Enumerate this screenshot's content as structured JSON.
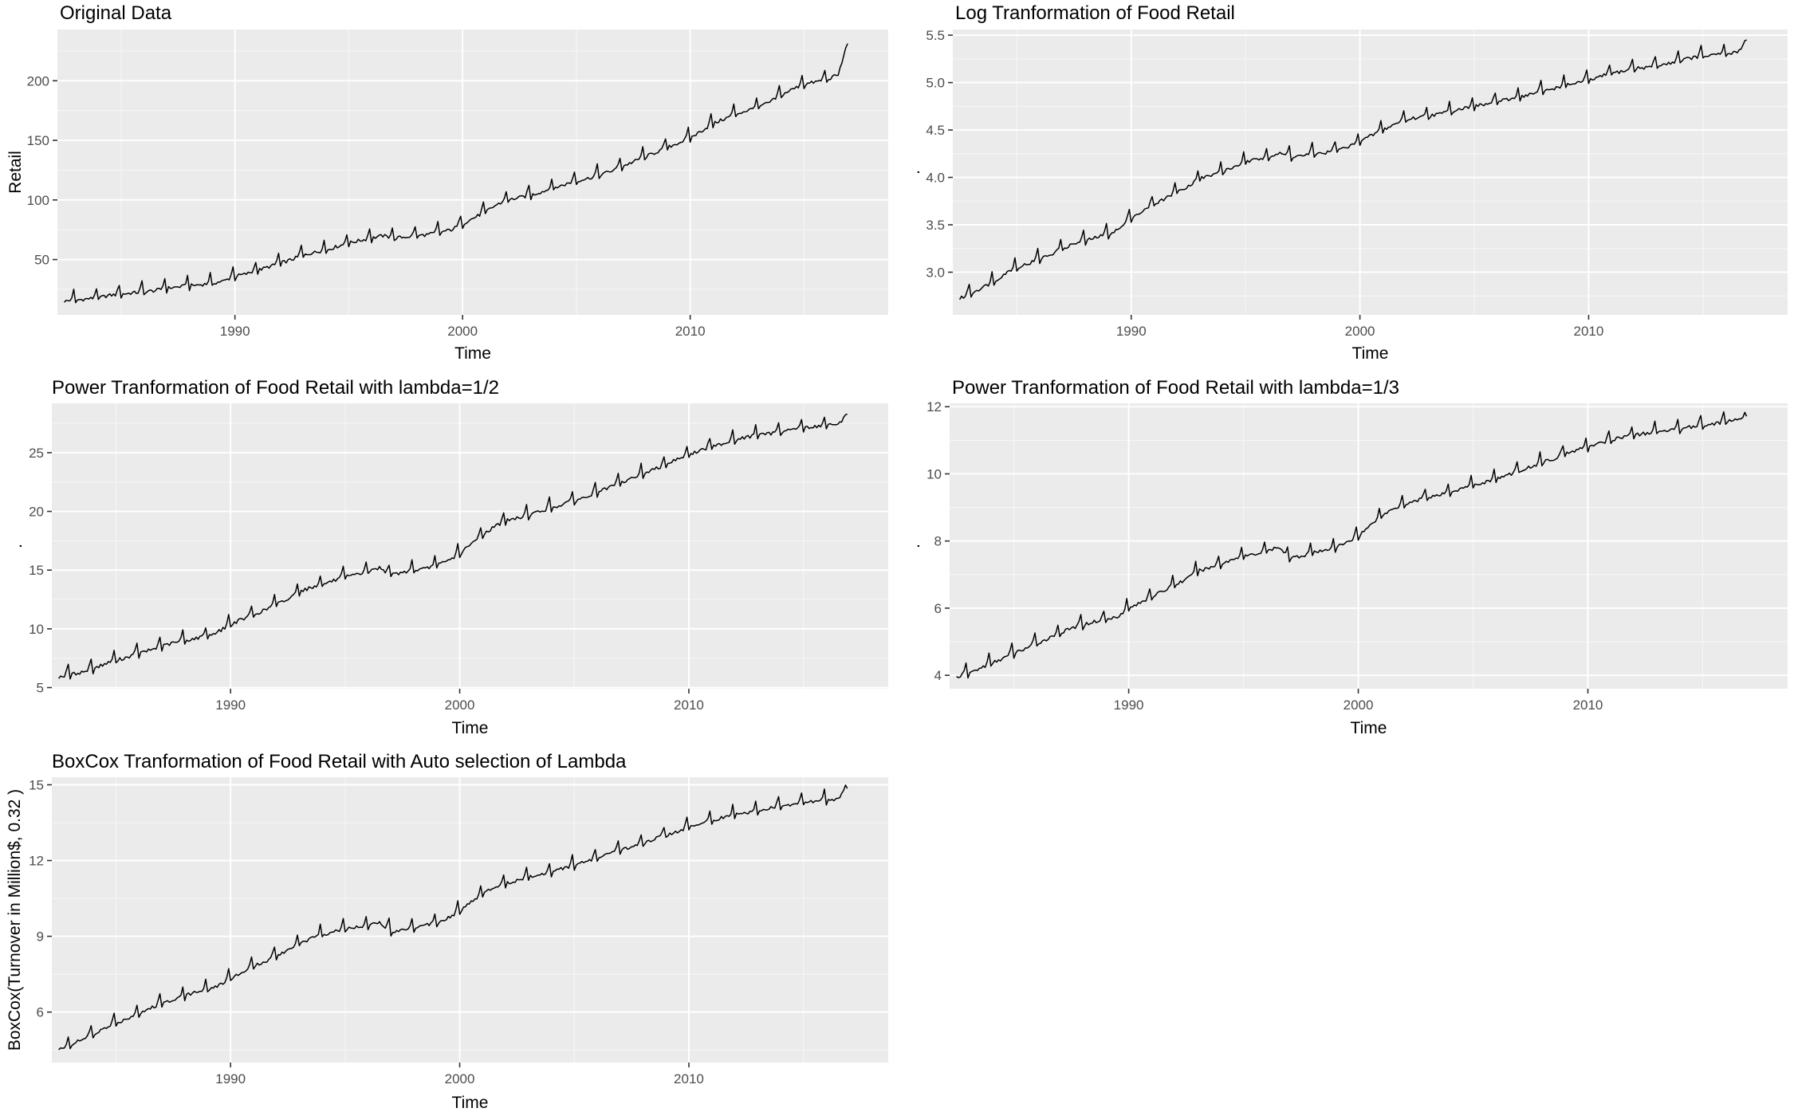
{
  "chart_data": [
    {
      "type": "line",
      "title": "Original Data",
      "xlabel": "Time",
      "ylabel": "Retail",
      "x_ticks": [
        1990,
        2000,
        2010
      ],
      "y_ticks": [
        50,
        100,
        150,
        200
      ],
      "xlim": [
        1982.2,
        2018.7
      ],
      "ylim": [
        3.6,
        243
      ],
      "grid": true,
      "series": [
        {
          "x": [
            1982.5,
            1983.0,
            1983.5,
            1984.0,
            1984.5,
            1985.0,
            1985.5,
            1986.0,
            1986.5,
            1987.0,
            1987.5,
            1988.0,
            1988.5,
            1989.0,
            1989.5,
            1990.0,
            1990.5,
            1991.0,
            1991.5,
            1992.0,
            1992.5,
            1993.0,
            1993.5,
            1994.0,
            1994.5,
            1995.0,
            1995.5,
            1996.0,
            1996.5,
            1997.0,
            1997.5,
            1998.0,
            1998.5,
            1999.0,
            1999.5,
            2000.0,
            2000.5,
            2001.0,
            2001.5,
            2002.0,
            2002.5,
            2003.0,
            2003.5,
            2004.0,
            2004.5,
            2005.0,
            2005.5,
            2006.0,
            2006.5,
            2007.0,
            2007.5,
            2008.0,
            2008.5,
            2009.0,
            2009.5,
            2010.0,
            2010.5,
            2011.0,
            2011.5,
            2012.0,
            2012.5,
            2013.0,
            2013.5,
            2014.0,
            2014.5,
            2015.0,
            2015.5,
            2016.0,
            2016.5,
            2016.9
          ],
          "y": [
            15,
            16,
            17,
            18,
            20,
            21,
            22,
            23,
            24,
            26,
            27,
            28,
            29,
            30,
            32,
            36,
            38,
            41,
            44,
            47,
            50,
            54,
            56,
            58,
            61,
            64,
            66,
            68,
            70,
            68,
            69,
            70,
            71,
            73,
            75,
            80,
            85,
            90,
            96,
            100,
            102,
            104,
            107,
            110,
            113,
            116,
            118,
            121,
            124,
            128,
            132,
            136,
            140,
            144,
            148,
            152,
            158,
            164,
            168,
            172,
            175,
            178,
            182,
            188,
            193,
            197,
            199,
            201,
            205,
            230
          ]
        }
      ]
    },
    {
      "type": "line",
      "title": "Log Tranformation of Food Retail",
      "xlabel": "Time",
      "ylabel": ".",
      "x_ticks": [
        1990,
        2000,
        2010
      ],
      "y_ticks": [
        3.0,
        3.5,
        4.0,
        4.5,
        5.0,
        5.5
      ],
      "y_tick_labels": [
        "3.0",
        "3.5",
        "4.0",
        "4.5",
        "5.0",
        "5.5"
      ],
      "xlim": [
        1982.2,
        2018.7
      ],
      "ylim": [
        2.55,
        5.56
      ],
      "grid": true,
      "series": [
        {
          "x": [
            1982.5,
            1983.0,
            1983.5,
            1984.0,
            1984.5,
            1985.0,
            1985.5,
            1986.0,
            1986.5,
            1987.0,
            1987.5,
            1988.0,
            1988.5,
            1989.0,
            1989.5,
            1990.0,
            1990.5,
            1991.0,
            1991.5,
            1992.0,
            1992.5,
            1993.0,
            1993.5,
            1994.0,
            1994.5,
            1995.0,
            1995.5,
            1996.0,
            1996.5,
            1997.0,
            1997.5,
            1998.0,
            1998.5,
            1999.0,
            1999.5,
            2000.0,
            2000.5,
            2001.0,
            2001.5,
            2002.0,
            2002.5,
            2003.0,
            2003.5,
            2004.0,
            2004.5,
            2005.0,
            2005.5,
            2006.0,
            2006.5,
            2007.0,
            2007.5,
            2008.0,
            2008.5,
            2009.0,
            2009.5,
            2010.0,
            2010.5,
            2011.0,
            2011.5,
            2012.0,
            2012.5,
            2013.0,
            2013.5,
            2014.0,
            2014.5,
            2015.0,
            2015.5,
            2016.0,
            2016.5,
            2016.9
          ],
          "y": [
            2.72,
            2.78,
            2.84,
            2.9,
            2.99,
            3.05,
            3.09,
            3.14,
            3.19,
            3.25,
            3.3,
            3.33,
            3.37,
            3.4,
            3.46,
            3.58,
            3.64,
            3.72,
            3.78,
            3.85,
            3.91,
            3.99,
            4.02,
            4.06,
            4.11,
            4.16,
            4.19,
            4.22,
            4.25,
            4.22,
            4.23,
            4.25,
            4.26,
            4.29,
            4.32,
            4.38,
            4.44,
            4.5,
            4.56,
            4.61,
            4.63,
            4.65,
            4.67,
            4.7,
            4.73,
            4.75,
            4.77,
            4.8,
            4.82,
            4.85,
            4.88,
            4.91,
            4.94,
            4.97,
            5.0,
            5.02,
            5.06,
            5.1,
            5.12,
            5.15,
            5.16,
            5.18,
            5.2,
            5.24,
            5.26,
            5.28,
            5.29,
            5.3,
            5.32,
            5.44
          ]
        }
      ]
    },
    {
      "type": "line",
      "title": "Power Tranformation of Food Retail with lambda=1/2",
      "xlabel": "Time",
      "ylabel": ".",
      "x_ticks": [
        1990,
        2000,
        2010
      ],
      "y_ticks": [
        5,
        10,
        15,
        20,
        25
      ],
      "xlim": [
        1982.2,
        2018.7
      ],
      "ylim": [
        4.9,
        29.2
      ],
      "grid": true,
      "series": [
        {
          "x": [
            1982.5,
            1983.0,
            1983.5,
            1984.0,
            1984.5,
            1985.0,
            1985.5,
            1986.0,
            1986.5,
            1987.0,
            1987.5,
            1988.0,
            1988.5,
            1989.0,
            1989.5,
            1990.0,
            1990.5,
            1991.0,
            1991.5,
            1992.0,
            1992.5,
            1993.0,
            1993.5,
            1994.0,
            1994.5,
            1995.0,
            1995.5,
            1996.0,
            1996.5,
            1997.0,
            1997.5,
            1998.0,
            1998.5,
            1999.0,
            1999.5,
            2000.0,
            2000.5,
            2001.0,
            2001.5,
            2002.0,
            2002.5,
            2003.0,
            2003.5,
            2004.0,
            2004.5,
            2005.0,
            2005.5,
            2006.0,
            2006.5,
            2007.0,
            2007.5,
            2008.0,
            2008.5,
            2009.0,
            2009.5,
            2010.0,
            2010.5,
            2011.0,
            2011.5,
            2012.0,
            2012.5,
            2013.0,
            2013.5,
            2014.0,
            2014.5,
            2015.0,
            2015.5,
            2016.0,
            2016.5,
            2016.9
          ],
          "y": [
            5.9,
            6.1,
            6.3,
            6.6,
            7.0,
            7.3,
            7.6,
            7.9,
            8.2,
            8.5,
            8.8,
            9.0,
            9.2,
            9.4,
            9.8,
            10.4,
            10.8,
            11.2,
            11.6,
            12.1,
            12.5,
            13.2,
            13.5,
            13.8,
            14.1,
            14.4,
            14.6,
            14.9,
            15.2,
            14.6,
            14.8,
            15.0,
            15.1,
            15.4,
            15.8,
            16.4,
            17.2,
            18.0,
            18.7,
            19.2,
            19.4,
            19.7,
            20.0,
            20.3,
            20.6,
            20.9,
            21.2,
            21.6,
            22.0,
            22.4,
            22.8,
            23.2,
            23.6,
            24.0,
            24.5,
            24.8,
            25.2,
            25.5,
            25.8,
            26.1,
            26.3,
            26.5,
            26.6,
            26.8,
            27.0,
            27.1,
            27.2,
            27.3,
            27.4,
            28.2
          ]
        }
      ]
    },
    {
      "type": "line",
      "title": "Power Tranformation of Food Retail with lambda=1/3",
      "xlabel": "Time",
      "ylabel": ".",
      "x_ticks": [
        1990,
        2000,
        2010
      ],
      "y_ticks": [
        4,
        6,
        8,
        10,
        12
      ],
      "xlim": [
        1982.2,
        2018.7
      ],
      "ylim": [
        3.6,
        12.1
      ],
      "grid": true,
      "series": [
        {
          "x": [
            1982.5,
            1983.0,
            1983.5,
            1984.0,
            1984.5,
            1985.0,
            1985.5,
            1986.0,
            1986.5,
            1987.0,
            1987.5,
            1988.0,
            1988.5,
            1989.0,
            1989.5,
            1990.0,
            1990.5,
            1991.0,
            1991.5,
            1992.0,
            1992.5,
            1993.0,
            1993.5,
            1994.0,
            1994.5,
            1995.0,
            1995.5,
            1996.0,
            1996.5,
            1997.0,
            1997.5,
            1998.0,
            1998.5,
            1999.0,
            1999.5,
            2000.0,
            2000.5,
            2001.0,
            2001.5,
            2002.0,
            2002.5,
            2003.0,
            2003.5,
            2004.0,
            2004.5,
            2005.0,
            2005.5,
            2006.0,
            2006.5,
            2007.0,
            2007.5,
            2008.0,
            2008.5,
            2009.0,
            2009.5,
            2010.0,
            2010.5,
            2011.0,
            2011.5,
            2012.0,
            2012.5,
            2013.0,
            2013.5,
            2014.0,
            2014.5,
            2015.0,
            2015.5,
            2016.0,
            2016.5,
            2016.9
          ],
          "y": [
            3.95,
            4.05,
            4.2,
            4.35,
            4.5,
            4.65,
            4.8,
            4.95,
            5.1,
            5.25,
            5.4,
            5.5,
            5.6,
            5.65,
            5.75,
            6.0,
            6.15,
            6.35,
            6.5,
            6.7,
            6.85,
            7.1,
            7.2,
            7.3,
            7.45,
            7.55,
            7.6,
            7.7,
            7.8,
            7.5,
            7.55,
            7.65,
            7.7,
            7.8,
            7.95,
            8.15,
            8.45,
            8.75,
            8.95,
            9.1,
            9.2,
            9.3,
            9.35,
            9.45,
            9.55,
            9.65,
            9.75,
            9.85,
            9.95,
            10.1,
            10.2,
            10.35,
            10.45,
            10.6,
            10.7,
            10.8,
            10.9,
            11.0,
            11.1,
            11.15,
            11.2,
            11.25,
            11.3,
            11.35,
            11.4,
            11.45,
            11.5,
            11.55,
            11.6,
            11.75
          ]
        }
      ]
    },
    {
      "type": "line",
      "title": "BoxCox Tranformation of Food Retail with Auto selection of Lambda",
      "xlabel": "Time",
      "ylabel": "BoxCox(Turnover in Million$, 0.32 )",
      "x_ticks": [
        1990,
        2000,
        2010
      ],
      "y_ticks": [
        6,
        9,
        12,
        15
      ],
      "xlim": [
        1982.2,
        2018.7
      ],
      "ylim": [
        4.0,
        15.3
      ],
      "grid": true,
      "series": [
        {
          "x": [
            1982.5,
            1983.0,
            1983.5,
            1984.0,
            1984.5,
            1985.0,
            1985.5,
            1986.0,
            1986.5,
            1987.0,
            1987.5,
            1988.0,
            1988.5,
            1989.0,
            1989.5,
            1990.0,
            1990.5,
            1991.0,
            1991.5,
            1992.0,
            1992.5,
            1993.0,
            1993.5,
            1994.0,
            1994.5,
            1995.0,
            1995.5,
            1996.0,
            1996.5,
            1997.0,
            1997.5,
            1998.0,
            1998.5,
            1999.0,
            1999.5,
            2000.0,
            2000.5,
            2001.0,
            2001.5,
            2002.0,
            2002.5,
            2003.0,
            2003.5,
            2004.0,
            2004.5,
            2005.0,
            2005.5,
            2006.0,
            2006.5,
            2007.0,
            2007.5,
            2008.0,
            2008.5,
            2009.0,
            2009.5,
            2010.0,
            2010.5,
            2011.0,
            2011.5,
            2012.0,
            2012.5,
            2013.0,
            2013.5,
            2014.0,
            2014.5,
            2015.0,
            2015.5,
            2016.0,
            2016.5,
            2016.9
          ],
          "y": [
            4.5,
            4.7,
            4.9,
            5.1,
            5.35,
            5.55,
            5.75,
            5.95,
            6.15,
            6.35,
            6.5,
            6.65,
            6.8,
            6.9,
            7.05,
            7.35,
            7.55,
            7.8,
            8.0,
            8.25,
            8.45,
            8.75,
            8.9,
            9.05,
            9.2,
            9.3,
            9.35,
            9.45,
            9.55,
            9.2,
            9.25,
            9.35,
            9.45,
            9.55,
            9.75,
            10.0,
            10.35,
            10.7,
            10.95,
            11.1,
            11.2,
            11.35,
            11.45,
            11.55,
            11.7,
            11.8,
            11.95,
            12.1,
            12.25,
            12.4,
            12.55,
            12.7,
            12.85,
            13.0,
            13.15,
            13.3,
            13.45,
            13.6,
            13.7,
            13.8,
            13.9,
            13.95,
            14.05,
            14.15,
            14.2,
            14.3,
            14.35,
            14.4,
            14.45,
            14.9
          ]
        }
      ]
    }
  ]
}
